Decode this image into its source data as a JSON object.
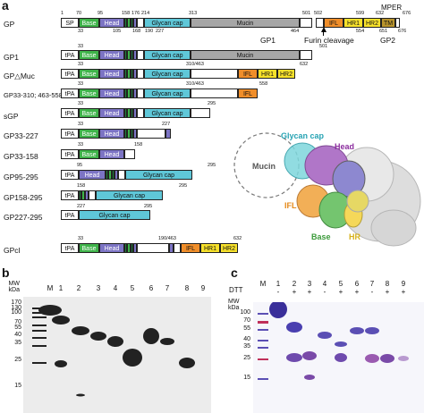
{
  "panels": {
    "a": "a",
    "b": "b",
    "c": "c"
  },
  "constructs": [
    {
      "id": "GP",
      "label": "GP"
    },
    {
      "id": "GP1",
      "label": "GP1"
    },
    {
      "id": "GPdMuc",
      "label": "GP△Muc"
    },
    {
      "id": "GP33310463558",
      "label": "GP33-310; 463-558"
    },
    {
      "id": "sGP",
      "label": "sGP"
    },
    {
      "id": "GP33227",
      "label": "GP33-227"
    },
    {
      "id": "GP33158",
      "label": "GP33-158"
    },
    {
      "id": "GP95295",
      "label": "GP95-295"
    },
    {
      "id": "GP158295",
      "label": "GP158-295"
    },
    {
      "id": "GP227295",
      "label": "GP227-295"
    },
    {
      "id": "GPcl",
      "label": "GPcl"
    }
  ],
  "domains": {
    "sp": "SP",
    "tpa": "tPA",
    "base": "Base",
    "head": "Head",
    "glycan_cap": "Glycan cap",
    "mucin": "Mucin",
    "ifl": "IFL",
    "hr1": "HR1",
    "hr2": "HR2",
    "tm": "TM",
    "mper": "MPER"
  },
  "annotations": {
    "gp1": "GP1",
    "gp2": "GP2",
    "furin": "Furin cleavage"
  },
  "numbers": {
    "gp_top": [
      "1",
      "70",
      "95",
      "158",
      "176",
      "214",
      "313",
      "501",
      "502",
      "599",
      "632",
      "676"
    ],
    "gp_bottom": [
      "33",
      "105",
      "168",
      "190",
      "227",
      "464",
      "554",
      "501",
      "651",
      "676"
    ],
    "gp_mid": [
      "633"
    ],
    "gp1_top": [
      "33"
    ],
    "gp1_end": [
      "501"
    ],
    "dmuc_top": [
      "33",
      "310/463",
      "632"
    ],
    "r4_top": [
      "33",
      "310/463",
      "558"
    ],
    "sgp_top": [
      "33",
      "295"
    ],
    "r6_top": [
      "33",
      "227"
    ],
    "r7_top": [
      "33",
      "158"
    ],
    "r8_top": [
      "95",
      "295"
    ],
    "r9_top": [
      "158",
      "295"
    ],
    "r10_top": [
      "227",
      "295"
    ],
    "gpcl_top": [
      "33",
      "190/463",
      "632"
    ]
  },
  "structure_labels": {
    "glycan_cap": "Glycan cap",
    "head": "Head",
    "mucin": "Mucin",
    "ifl": "IFL",
    "base": "Base",
    "hr": "HR"
  },
  "gel_b": {
    "mw_title": "MW\nkDa",
    "lanes": [
      "M",
      "1",
      "2",
      "3",
      "4",
      "5",
      "6",
      "7",
      "8",
      "9"
    ],
    "markers": [
      "170",
      "130",
      "100",
      "70",
      "55",
      "40",
      "35",
      "25",
      "15"
    ]
  },
  "gel_c": {
    "mw_title": "MW\nkDa",
    "dtt_label": "DTT",
    "lanes": [
      "M",
      "1",
      "2",
      "3",
      "4",
      "5",
      "6",
      "7",
      "8",
      "9"
    ],
    "dtt": [
      "-",
      "+",
      "+",
      "-",
      "+",
      "+",
      "-",
      "+",
      "+"
    ],
    "markers": [
      "100",
      "70",
      "55",
      "40",
      "35",
      "25",
      "15"
    ]
  }
}
